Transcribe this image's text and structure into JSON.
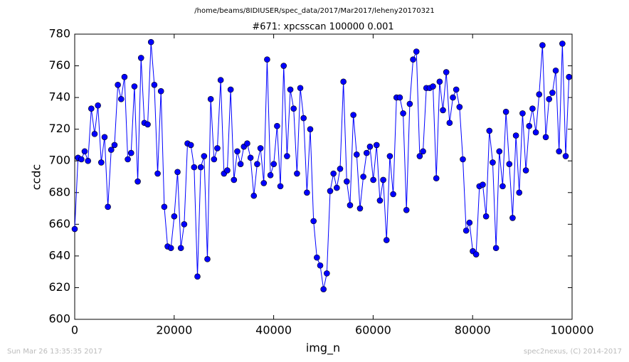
{
  "header": "/home/beams/8IDIUSER/spec_data/2017/Mar2017/leheny20170321",
  "footer_left": "Sun Mar 26 13:35:35 2017",
  "footer_right": "spec2nexus, (C) 2014-2017",
  "chart_data": {
    "type": "line",
    "title": "#671: xpcsscan 100000 0.001",
    "x_label": "img_n",
    "y_label": "ccdc",
    "xlim": [
      0,
      100000
    ],
    "xticks": [
      0,
      20000,
      40000,
      60000,
      80000,
      100000
    ],
    "ylim": [
      600,
      780
    ],
    "yticks": [
      600,
      620,
      640,
      660,
      680,
      700,
      720,
      740,
      760,
      780
    ],
    "x": [
      0,
      667,
      1334,
      2001,
      2668,
      3335,
      4002,
      4669,
      5336,
      6003,
      6670,
      7337,
      8004,
      8671,
      9338,
      10005,
      10672,
      11339,
      12006,
      12673,
      13340,
      14007,
      14674,
      15341,
      16008,
      16675,
      17342,
      18009,
      18676,
      19343,
      20010,
      20677,
      21344,
      22011,
      22678,
      23345,
      24012,
      24679,
      25346,
      26013,
      26680,
      27347,
      28014,
      28681,
      29348,
      30015,
      30682,
      31349,
      32016,
      32683,
      33350,
      34017,
      34684,
      35351,
      36018,
      36685,
      37352,
      38019,
      38686,
      39353,
      40020,
      40687,
      41354,
      42021,
      42688,
      43355,
      44022,
      44689,
      45356,
      46023,
      46690,
      47357,
      48024,
      48691,
      49358,
      50025,
      50692,
      51359,
      52026,
      52693,
      53360,
      54027,
      54694,
      55361,
      56028,
      56695,
      57362,
      58029,
      58696,
      59363,
      60030,
      60697,
      61364,
      62031,
      62698,
      63365,
      64032,
      64699,
      65366,
      66033,
      66700,
      67367,
      68034,
      68701,
      69368,
      70035,
      70702,
      71369,
      72036,
      72703,
      73370,
      74037,
      74704,
      75371,
      76038,
      76705,
      77372,
      78039,
      78706,
      79373,
      80040,
      80707,
      81374,
      82041,
      82708,
      83375,
      84042,
      84709,
      85376,
      86043,
      86710,
      87377,
      88044,
      88711,
      89378,
      90045,
      90712,
      91379,
      92046,
      92713,
      93380,
      94047,
      94714,
      95381,
      96048,
      96715,
      97382,
      98049,
      98716,
      99383
    ],
    "series": [
      {
        "color": "#0000ff",
        "values": [
          657,
          702,
          701,
          706,
          700,
          733,
          717,
          735,
          699,
          715,
          671,
          707,
          710,
          748,
          739,
          753,
          701,
          705,
          747,
          687,
          765,
          724,
          723,
          775,
          748,
          692,
          744,
          671,
          646,
          645,
          665,
          693,
          645,
          660,
          711,
          710,
          696,
          627,
          696,
          703,
          638,
          739,
          701,
          708,
          751,
          692,
          694,
          745,
          688,
          706,
          698,
          709,
          711,
          702,
          678,
          698,
          708,
          686,
          764,
          691,
          698,
          722,
          684,
          760,
          703,
          745,
          733,
          692,
          746,
          727,
          680,
          720,
          662,
          639,
          634,
          619,
          629,
          681,
          692,
          683,
          695,
          750,
          687,
          672,
          729,
          704,
          670,
          690,
          705,
          709,
          688,
          710,
          675,
          688,
          650,
          703,
          679,
          740,
          740,
          730,
          669,
          736,
          764,
          769,
          703,
          706,
          746,
          746,
          747,
          689,
          750,
          732,
          756,
          724,
          740,
          745,
          734,
          701,
          656,
          661,
          643,
          641,
          684,
          685,
          665,
          719,
          699,
          645,
          706,
          684,
          731,
          698,
          664,
          716,
          680,
          730,
          694,
          722,
          733,
          718,
          742,
          773,
          715,
          739,
          743,
          757,
          706,
          774,
          703,
          753
        ]
      }
    ]
  }
}
